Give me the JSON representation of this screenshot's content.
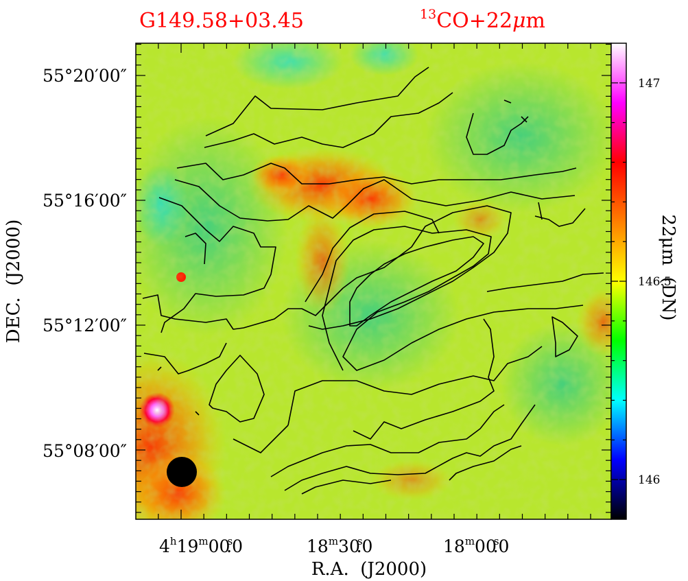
{
  "chart_data": {
    "type": "heatmap",
    "title": "G149.58+03.45",
    "subtitle": "13CO+22μm",
    "subtitle_parts": {
      "sup": "13",
      "base": "CO+22",
      "mu": "μ",
      "unit": "m"
    },
    "xlabel": "R.A.  (J2000)",
    "ylabel": "DEC.  (J2000)",
    "colorbar_label": "22μm  (DN)",
    "colorbar": {
      "range": [
        145.9,
        147.1
      ],
      "ticks": [
        {
          "value": 146.0,
          "label": "146"
        },
        {
          "value": 146.5,
          "label": "146.5"
        },
        {
          "value": 147.0,
          "label": "147"
        }
      ],
      "colors": [
        "#000000",
        "#0000ff",
        "#00ffff",
        "#00ff00",
        "#ffff00",
        "#ff7f00",
        "#ff0000",
        "#ff00ff",
        "#ffffff"
      ]
    },
    "x_ticks": [
      {
        "value": "4h19m00.0s",
        "label": "4h19m00.0s",
        "parts": [
          "4",
          "h",
          "19",
          "m",
          "00",
          "s",
          ".0"
        ]
      },
      {
        "value": "4h18m30.0s",
        "label": "18m30.0s",
        "parts": [
          "",
          "",
          "18",
          "m",
          "30",
          "s",
          ".0"
        ]
      },
      {
        "value": "4h18m00.0s",
        "label": "18m00.0s",
        "parts": [
          "",
          "",
          "18",
          "m",
          "00",
          "s",
          ".0"
        ]
      }
    ],
    "y_ticks": [
      {
        "value": "55°20'00\"",
        "label": "55°20′00″"
      },
      {
        "value": "55°16'00\"",
        "label": "55°16′00″"
      },
      {
        "value": "55°12'00\"",
        "label": "55°12′00″"
      },
      {
        "value": "55°08'00\"",
        "label": "55°08′00″"
      }
    ],
    "contour_color": "#000000",
    "beam": "filled black circle, bottom-left",
    "grid": false
  }
}
